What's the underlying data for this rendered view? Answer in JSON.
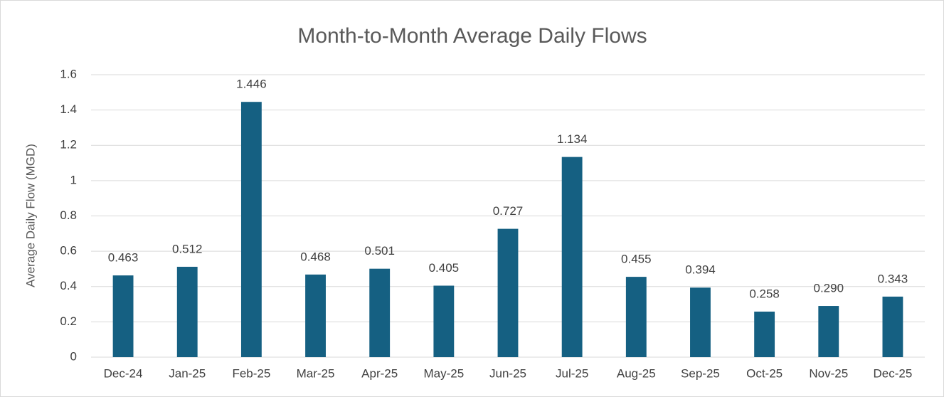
{
  "chart_data": {
    "type": "bar",
    "title": "Month-to-Month Average Daily Flows",
    "y_label": "Average Daily Flow (MGD)",
    "categories": [
      "Dec-24",
      "Jan-25",
      "Feb-25",
      "Mar-25",
      "Apr-25",
      "May-25",
      "Jun-25",
      "Jul-25",
      "Aug-25",
      "Sep-25",
      "Oct-25",
      "Nov-25",
      "Dec-25"
    ],
    "values": [
      0.463,
      0.512,
      1.446,
      0.468,
      0.501,
      0.405,
      0.727,
      1.134,
      0.455,
      0.394,
      0.258,
      0.29,
      0.343
    ],
    "value_labels": [
      "0.463",
      "0.512",
      "1.446",
      "0.468",
      "0.501",
      "0.405",
      "0.727",
      "1.134",
      "0.455",
      "0.394",
      "0.258",
      "0.290",
      "0.343"
    ],
    "color": "#156082",
    "ylim": [
      0,
      1.6
    ],
    "yticks": [
      0,
      0.2,
      0.4,
      0.6,
      0.8,
      1,
      1.2,
      1.4,
      1.6
    ],
    "grid": true
  }
}
